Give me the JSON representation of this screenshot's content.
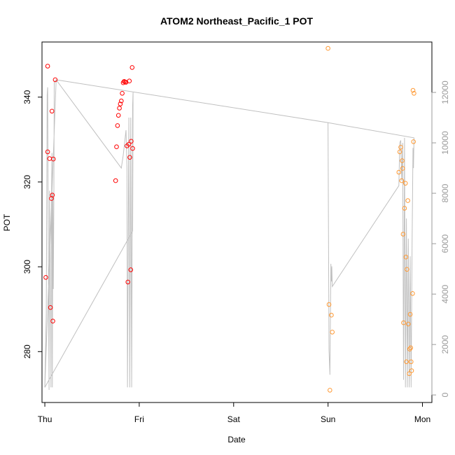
{
  "chart_data": {
    "type": "scatter",
    "title": "ATOM2 Northeast_Pacific_1 POT",
    "xlabel": "Date",
    "ylabel": "POT",
    "x_ticks": [
      "Thu",
      "Fri",
      "Sat",
      "Sun",
      "Mon"
    ],
    "xlim": [
      -0.03,
      4.1
    ],
    "ylim": [
      268,
      353
    ],
    "y_ticks": [
      280,
      300,
      320,
      340
    ],
    "y2lim": [
      -300,
      14000
    ],
    "y2_ticks": [
      0,
      2000,
      4000,
      6000,
      8000,
      10000,
      12000
    ],
    "colors": {
      "series1": "#ff0000",
      "series2": "#ff9933",
      "secondary": "#c0c0c0",
      "axis": "#000000",
      "axis2": "#9a9a9a"
    },
    "series": [
      {
        "color": "#ff0000",
        "points": [
          [
            0.01,
            297.5
          ],
          [
            0.03,
            327.1
          ],
          [
            0.03,
            347.3
          ],
          [
            0.05,
            325.5
          ],
          [
            0.06,
            290.4
          ],
          [
            0.07,
            316.1
          ],
          [
            0.075,
            336.7
          ],
          [
            0.08,
            316.9
          ],
          [
            0.085,
            287.2
          ],
          [
            0.09,
            325.4
          ],
          [
            0.11,
            344.1
          ],
          [
            0.75,
            320.3
          ],
          [
            0.76,
            328.3
          ],
          [
            0.77,
            333.3
          ],
          [
            0.78,
            335.7
          ],
          [
            0.79,
            337.4
          ],
          [
            0.8,
            338.4
          ],
          [
            0.81,
            339.1
          ],
          [
            0.82,
            340.9
          ],
          [
            0.83,
            343.4
          ],
          [
            0.84,
            343.7
          ],
          [
            0.85,
            343.6
          ],
          [
            0.86,
            343.5
          ],
          [
            0.87,
            328.5
          ],
          [
            0.88,
            296.4
          ],
          [
            0.89,
            328.9
          ],
          [
            0.895,
            343.8
          ],
          [
            0.9,
            325.8
          ],
          [
            0.91,
            299.3
          ],
          [
            0.915,
            329.6
          ],
          [
            0.925,
            347.0
          ],
          [
            0.93,
            327.9
          ]
        ]
      },
      {
        "color": "#ff9933",
        "points": [
          [
            3.0,
            351.5
          ],
          [
            3.01,
            291.1
          ],
          [
            3.02,
            270.9
          ],
          [
            3.035,
            288.6
          ],
          [
            3.045,
            284.6
          ],
          [
            3.75,
            322.3
          ],
          [
            3.76,
            327.1
          ],
          [
            3.77,
            328.2
          ],
          [
            3.78,
            320.3
          ],
          [
            3.785,
            325.0
          ],
          [
            3.79,
            323.2
          ],
          [
            3.795,
            307.7
          ],
          [
            3.8,
            286.8
          ],
          [
            3.81,
            313.8
          ],
          [
            3.82,
            319.7
          ],
          [
            3.825,
            302.3
          ],
          [
            3.83,
            277.6
          ],
          [
            3.835,
            299.4
          ],
          [
            3.845,
            315.6
          ],
          [
            3.85,
            286.5
          ],
          [
            3.86,
            274.8
          ],
          [
            3.865,
            280.6
          ],
          [
            3.87,
            288.8
          ],
          [
            3.875,
            280.9
          ],
          [
            3.88,
            277.6
          ],
          [
            3.885,
            275.5
          ],
          [
            3.895,
            293.7
          ],
          [
            3.9,
            341.6
          ],
          [
            3.905,
            329.5
          ],
          [
            3.91,
            340.9
          ]
        ]
      }
    ],
    "secondary_series": {
      "color": "#c0c0c0",
      "points": [
        [
          0.0,
          300
        ],
        [
          0.015,
          3200
        ],
        [
          0.025,
          11900
        ],
        [
          0.03,
          12200
        ],
        [
          0.035,
          7000
        ],
        [
          0.045,
          200
        ],
        [
          0.05,
          8100
        ],
        [
          0.06,
          3800
        ],
        [
          0.065,
          300
        ],
        [
          0.07,
          7500
        ],
        [
          0.075,
          9600
        ],
        [
          0.08,
          300
        ],
        [
          0.085,
          8000
        ],
        [
          0.09,
          4200
        ],
        [
          0.095,
          7600
        ],
        [
          0.1,
          12400
        ],
        [
          0.12,
          12500
        ],
        [
          0.81,
          9000
        ],
        [
          0.83,
          9500
        ],
        [
          0.86,
          10500
        ],
        [
          0.87,
          9000
        ],
        [
          0.875,
          300
        ],
        [
          0.89,
          11000
        ],
        [
          0.9,
          300
        ],
        [
          0.91,
          11000
        ],
        [
          0.92,
          300
        ],
        [
          0.93,
          11500
        ],
        [
          0.935,
          12000
        ],
        [
          0.93,
          6500
        ],
        [
          0.0,
          300
        ],
        [
          0.12,
          12500
        ],
        [
          3.0,
          10800
        ],
        [
          3.01,
          1800
        ],
        [
          3.02,
          800
        ],
        [
          3.03,
          5200
        ],
        [
          3.035,
          4500
        ],
        [
          3.04,
          5100
        ],
        [
          3.045,
          4300
        ],
        [
          3.75,
          8300
        ],
        [
          3.76,
          10000
        ],
        [
          3.77,
          10100
        ],
        [
          3.78,
          8500
        ],
        [
          3.79,
          10000
        ],
        [
          3.8,
          600
        ],
        [
          3.81,
          10200
        ],
        [
          3.82,
          300
        ],
        [
          3.83,
          7000
        ],
        [
          3.84,
          300
        ],
        [
          3.85,
          6200
        ],
        [
          3.86,
          300
        ],
        [
          3.87,
          5500
        ],
        [
          3.88,
          300
        ],
        [
          3.89,
          6000
        ],
        [
          3.9,
          9800
        ],
        [
          3.905,
          9000
        ],
        [
          3.91,
          10200
        ],
        [
          3.0,
          10800
        ]
      ]
    }
  }
}
